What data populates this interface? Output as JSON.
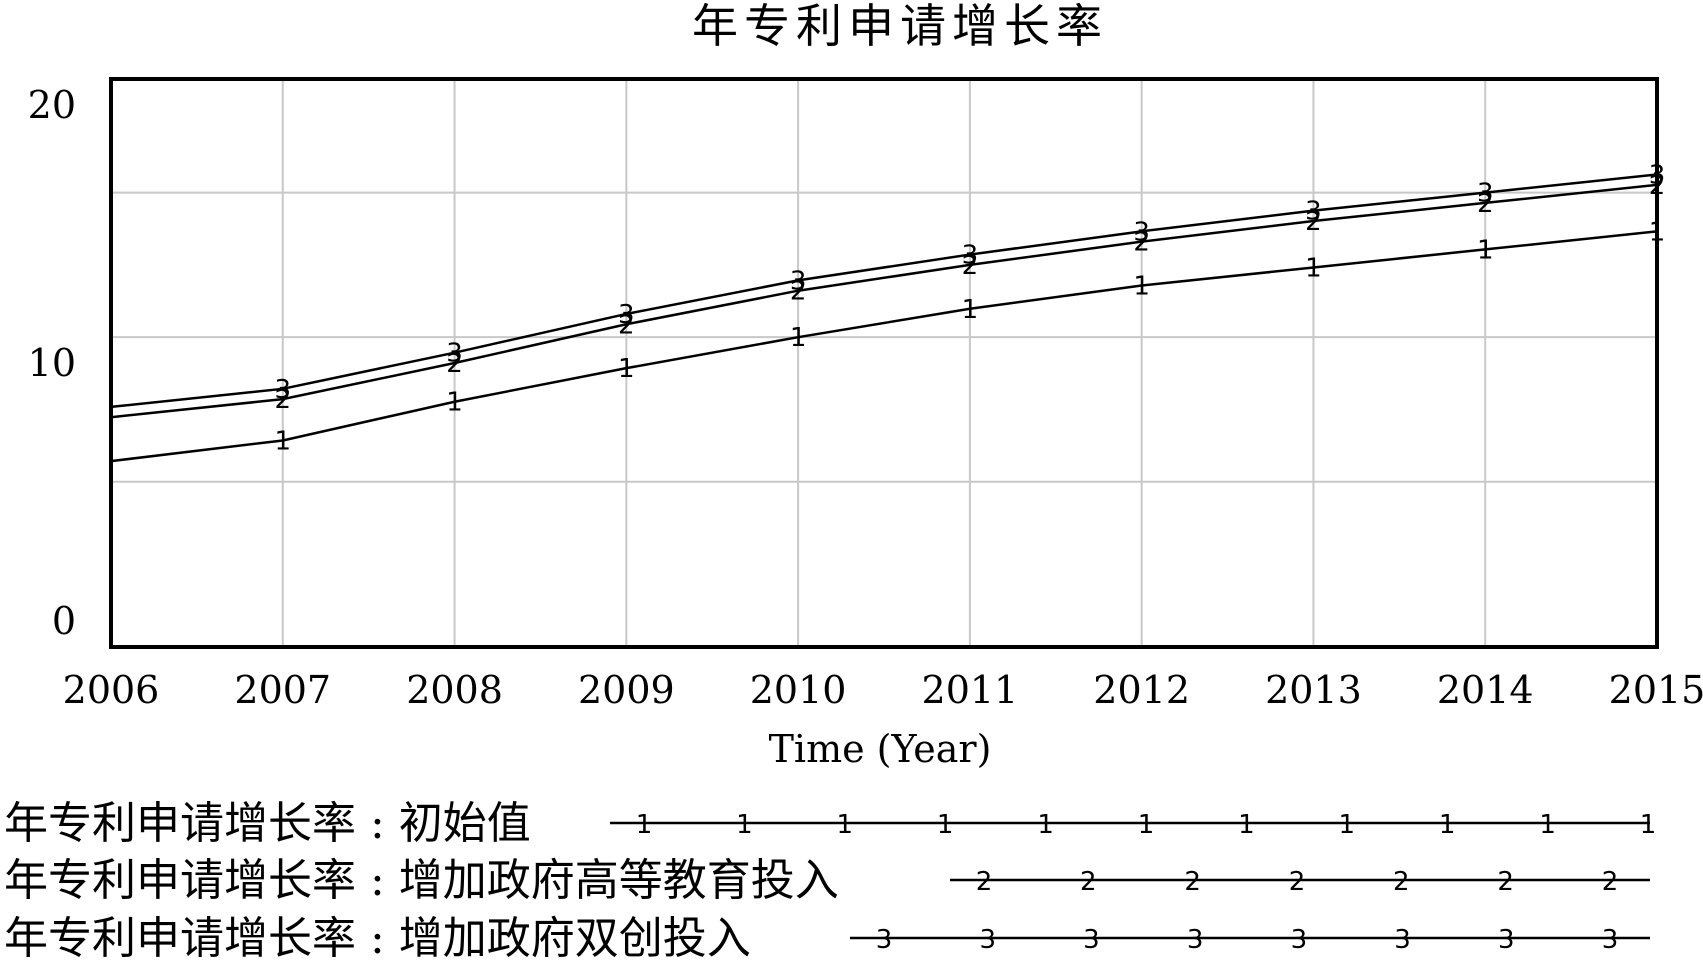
{
  "chart_data": {
    "type": "line",
    "title": "年专利申请增长率",
    "xlabel": "Time (Year)",
    "ylabel": "",
    "x": [
      2006,
      2007,
      2008,
      2009,
      2010,
      2011,
      2012,
      2013,
      2014,
      2015
    ],
    "xlim": [
      2006,
      2015
    ],
    "ylim": [
      -1,
      21
    ],
    "y_ticks": [
      0,
      10,
      20
    ],
    "y_tick_labels": [
      "0",
      "10",
      "20"
    ],
    "y_grid": [
      5.4,
      11,
      16.6
    ],
    "x_tick_labels": [
      "2006",
      "2007",
      "2008",
      "2009",
      "2010",
      "2011",
      "2012",
      "2013",
      "2014",
      "2015"
    ],
    "grid": true,
    "legend_position": "bottom",
    "series": [
      {
        "name": "年专利申请增长率 : 初始值",
        "marker": "1",
        "values": [
          6.2,
          7.0,
          8.5,
          9.8,
          11.0,
          12.1,
          13.0,
          13.7,
          14.4,
          15.1
        ]
      },
      {
        "name": "年专利申请增长率 : 增加政府高等教育投入",
        "marker": "2",
        "values": [
          7.9,
          8.6,
          10.0,
          11.5,
          12.8,
          13.8,
          14.7,
          15.5,
          16.2,
          16.9
        ]
      },
      {
        "name": "年专利申请增长率 : 增加政府双创投入",
        "marker": "3",
        "values": [
          8.3,
          9.0,
          10.4,
          11.9,
          13.2,
          14.2,
          15.1,
          15.9,
          16.6,
          17.3
        ]
      }
    ],
    "colors": {
      "line": "#000000",
      "grid": "#c8c8c8",
      "frame": "#000000",
      "background": "#ffffff"
    }
  }
}
